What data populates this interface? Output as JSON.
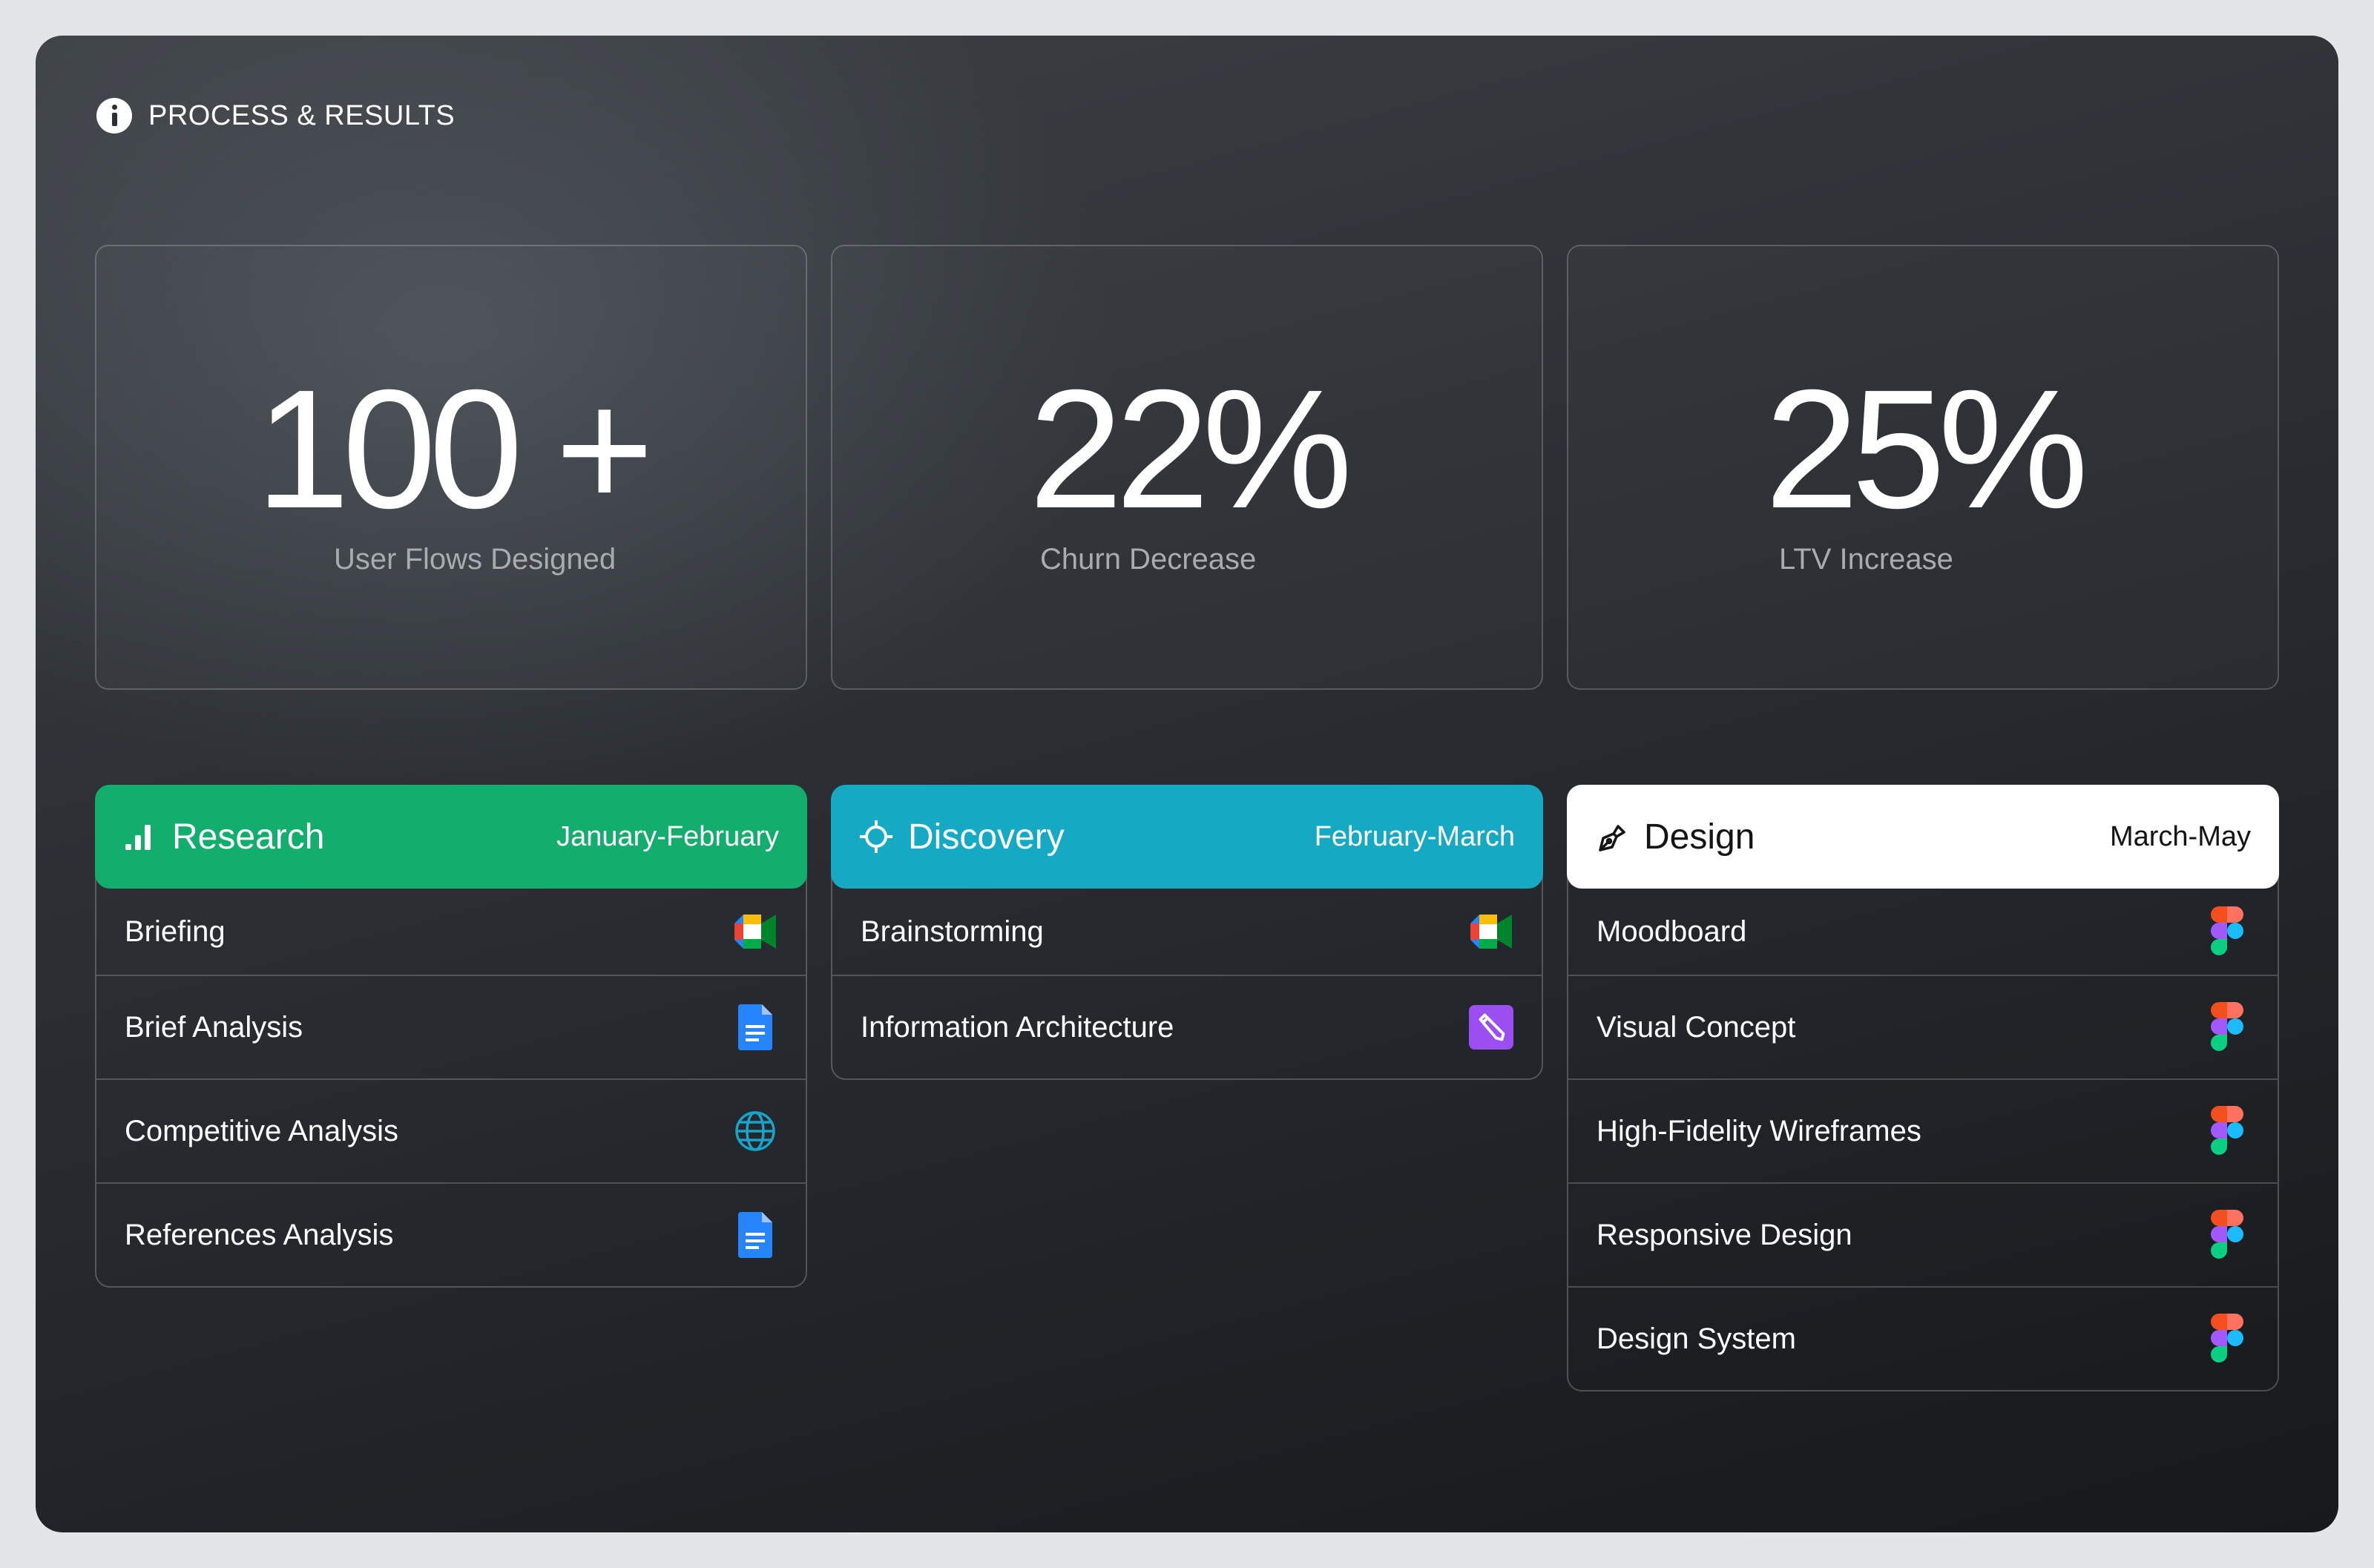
{
  "header": {
    "title": "PROCESS & RESULTS",
    "icon": "info-icon"
  },
  "stats": [
    {
      "value": "100 +",
      "label": "User Flows Designed"
    },
    {
      "value": "22%",
      "label": "Churn Decrease"
    },
    {
      "value": "25%",
      "label": "LTV Increase"
    }
  ],
  "phases": [
    {
      "title": "Research",
      "dates": "January-February",
      "icon": "bar-chart-icon",
      "header_color": "#13ad6e",
      "text_color": "#ffffff",
      "items": [
        {
          "label": "Briefing",
          "tool": "google-meet-icon"
        },
        {
          "label": "Brief Analysis",
          "tool": "google-docs-icon"
        },
        {
          "label": "Competitive Analysis",
          "tool": "globe-icon"
        },
        {
          "label": "References Analysis",
          "tool": "google-docs-icon"
        }
      ]
    },
    {
      "title": "Discovery",
      "dates": "February-March",
      "icon": "target-icon",
      "header_color": "#16a9c4",
      "text_color": "#ffffff",
      "items": [
        {
          "label": "Brainstorming",
          "tool": "google-meet-icon"
        },
        {
          "label": "Information Architecture",
          "tool": "pencil-app-icon"
        }
      ]
    },
    {
      "title": "Design",
      "dates": "March-May",
      "icon": "pen-tool-icon",
      "header_color": "#ffffff",
      "text_color": "#141414",
      "items": [
        {
          "label": "Moodboard",
          "tool": "figma-icon"
        },
        {
          "label": "Visual Concept",
          "tool": "figma-icon"
        },
        {
          "label": "High-Fidelity Wireframes",
          "tool": "figma-icon"
        },
        {
          "label": "Responsive Design",
          "tool": "figma-icon"
        },
        {
          "label": "Design System",
          "tool": "figma-icon"
        }
      ]
    }
  ]
}
